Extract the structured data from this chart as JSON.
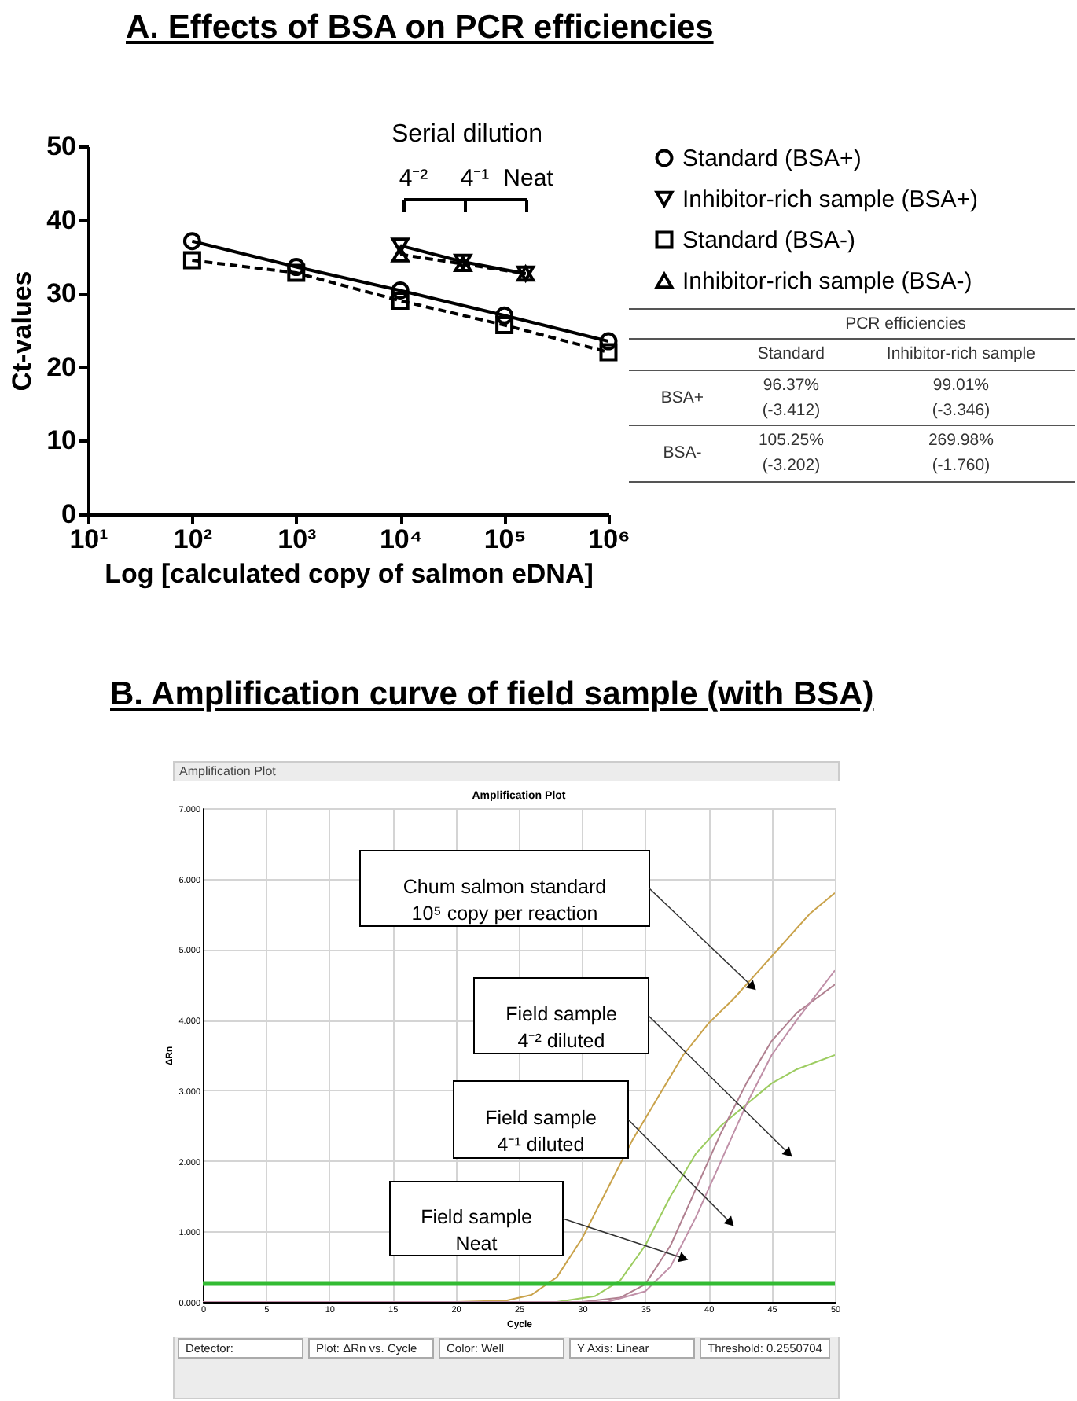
{
  "chart_data": [
    {
      "type": "line",
      "title": "A.  Effects of BSA on PCR efficiencies",
      "xlabel": "Log [calculated copy of salmon eDNA]",
      "ylabel": "Ct-values",
      "log": "x",
      "xlim": [
        10,
        1000000
      ],
      "xticks": [
        {
          "value": 10,
          "label": "10¹"
        },
        {
          "value": 100,
          "label": "10²"
        },
        {
          "value": 1000,
          "label": "10³"
        },
        {
          "value": 10000,
          "label": "10⁴"
        },
        {
          "value": 100000,
          "label": "10⁵"
        },
        {
          "value": 1000000,
          "label": "10⁶"
        }
      ],
      "ylim": [
        0,
        50
      ],
      "yticks": [
        0,
        10,
        20,
        30,
        40,
        50
      ],
      "legend": "right",
      "series": [
        {
          "name": "Standard (BSA+)",
          "color": "#000000",
          "marker": "circle",
          "line_style": "solid",
          "x": [
            100,
            1000,
            10000,
            100000,
            1000000
          ],
          "values": [
            37.1,
            33.6,
            30.4,
            27.0,
            23.5
          ]
        },
        {
          "name": "Inhibitor-rich sample (BSA+)",
          "color": "#000000",
          "marker": "triangle-down",
          "line_style": "solid",
          "x": [
            10000,
            40000,
            160000
          ],
          "values": [
            36.5,
            34.3,
            32.7
          ]
        },
        {
          "name": "Standard (BSA-)",
          "color": "#000000",
          "marker": "square",
          "line_style": "dashed",
          "x": [
            100,
            1000,
            10000,
            100000,
            1000000
          ],
          "values": [
            34.5,
            32.8,
            29.0,
            25.7,
            22.0
          ]
        },
        {
          "name": "Inhibitor-rich sample (BSA-)",
          "color": "#000000",
          "marker": "triangle",
          "line_style": "dashed",
          "x": [
            10000,
            40000,
            160000
          ],
          "values": [
            35.3,
            34.0,
            32.7
          ]
        }
      ],
      "annotations": [
        "Serial dilution",
        "4⁻²",
        "4⁻¹",
        "Neat"
      ]
    },
    {
      "type": "other",
      "title": "PCR efficiencies",
      "categories": [
        "Standard",
        "Inhibitor-rich sample"
      ],
      "y_categories": [
        "BSA+",
        "BSA-"
      ],
      "cell_labels": [
        [
          "96.37%\n(-3.412)",
          "99.01%\n(-3.346)"
        ],
        [
          "105.25%\n(-3.202)",
          "269.98%\n(-1.760)"
        ]
      ]
    },
    {
      "type": "line",
      "title": "B.  Amplification curve of field sample (with BSA)",
      "subtitle": "Amplification Plot",
      "xlabel": "Cycle",
      "ylabel": "ΔRn",
      "grid": true,
      "xlim": [
        0,
        50
      ],
      "ylim": [
        0,
        7
      ],
      "xticks": [
        0,
        5,
        10,
        15,
        20,
        25,
        30,
        35,
        40,
        45,
        50
      ],
      "yticks": [
        {
          "value": 0,
          "label": "0.000"
        },
        {
          "value": 1,
          "label": "1.000"
        },
        {
          "value": 2,
          "label": "2.000"
        },
        {
          "value": 3,
          "label": "3.000"
        },
        {
          "value": 4,
          "label": "4.000"
        },
        {
          "value": 5,
          "label": "5.000"
        },
        {
          "value": 6,
          "label": "6.000"
        },
        {
          "value": 7,
          "label": "7.000"
        }
      ],
      "series": [
        {
          "color": "#c9a24a",
          "x": [
            0,
            20,
            24,
            26,
            28,
            30,
            32,
            34,
            36,
            38,
            40,
            42,
            44,
            46,
            48,
            50
          ],
          "values": [
            0,
            0,
            0.02,
            0.1,
            0.35,
            0.9,
            1.6,
            2.3,
            2.9,
            3.5,
            3.95,
            4.3,
            4.7,
            5.1,
            5.5,
            5.8
          ]
        },
        {
          "color": "#9ccc60",
          "x": [
            0,
            28,
            31,
            33,
            35,
            37,
            39,
            41,
            43,
            45,
            47,
            50
          ],
          "values": [
            0,
            0,
            0.08,
            0.3,
            0.8,
            1.5,
            2.1,
            2.5,
            2.8,
            3.1,
            3.3,
            3.5
          ]
        },
        {
          "color": "#b08090",
          "x": [
            0,
            30,
            33,
            35,
            37,
            39,
            41,
            43,
            45,
            47,
            50
          ],
          "values": [
            0,
            0,
            0.06,
            0.25,
            0.8,
            1.6,
            2.4,
            3.1,
            3.7,
            4.1,
            4.5
          ]
        },
        {
          "color": "#c090a8",
          "x": [
            0,
            32,
            35,
            37,
            39,
            41,
            43,
            45,
            47,
            50
          ],
          "values": [
            0,
            0,
            0.15,
            0.5,
            1.2,
            2.0,
            2.8,
            3.5,
            4.0,
            4.7
          ]
        }
      ],
      "ref_lines": [
        {
          "axis": "y",
          "value": 0.2550704,
          "color": "#33bb33"
        }
      ],
      "annotations": [
        "Chum salmon standard\n10⁵ copy per reaction",
        "Field sample\n4⁻² diluted",
        "Field sample\n4⁻¹ diluted",
        "Field sample\nNeat",
        "Amplification Plot",
        "Detector:",
        "Plot: ΔRn vs. Cycle",
        "Color: Well",
        "Y Axis: Linear",
        "Threshold: 0.2550704"
      ]
    }
  ]
}
